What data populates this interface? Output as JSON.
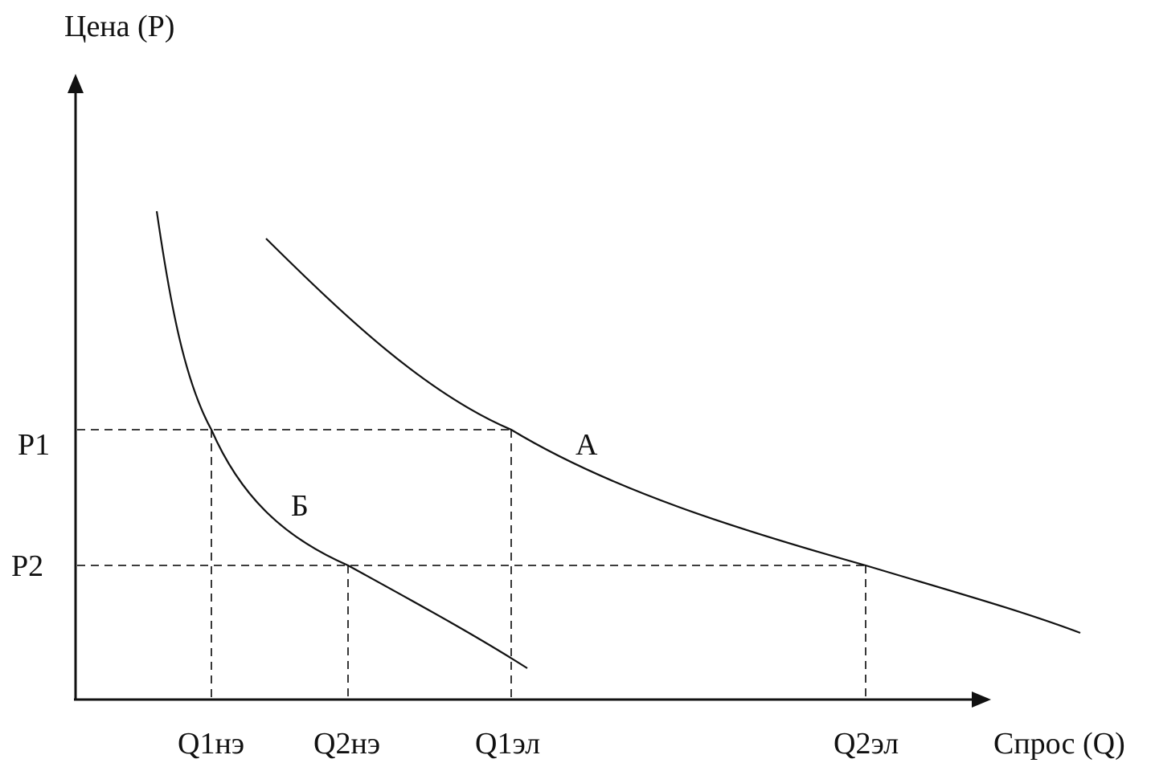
{
  "diagram": {
    "y_axis_label": "Цена (P)",
    "x_axis_label": "Спрос (Q)",
    "price_levels": [
      "P1",
      "P2"
    ],
    "quantity_levels": [
      "Q1нэ",
      "Q2нэ",
      "Q1эл",
      "Q2эл"
    ],
    "curves": [
      {
        "id": "A",
        "label": "А",
        "elasticity": "elastic"
      },
      {
        "id": "B",
        "label": "Б",
        "elasticity": "inelastic"
      }
    ]
  }
}
